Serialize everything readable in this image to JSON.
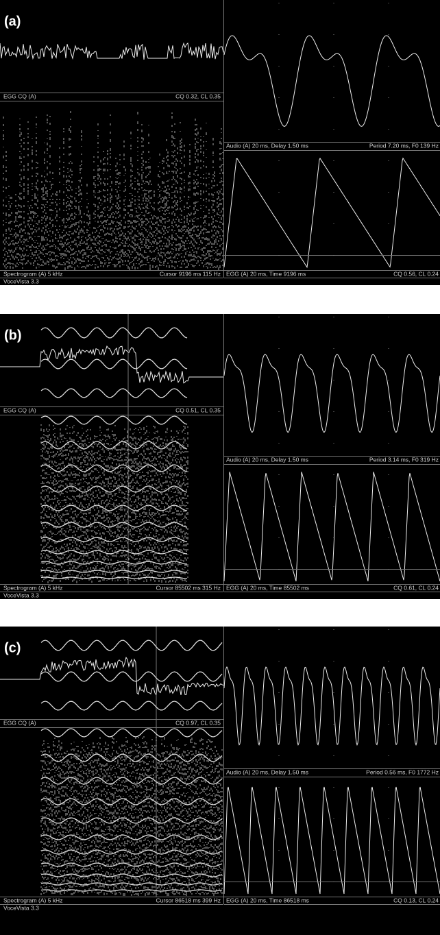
{
  "panels": [
    {
      "label": "(a)",
      "egg_cq": {
        "title": "EGG CQ (A)",
        "values": "CQ 0.32, CL 0.35"
      },
      "spectrogram": {
        "title": "Spectrogram (A)   5 kHz",
        "cursor": "Cursor  9196 ms   115  Hz"
      },
      "audio": {
        "title": "Audio (A) 20 ms, Delay 1.50 ms",
        "period": "Period 7.20 ms, F0 139 Hz"
      },
      "egg": {
        "title": "EGG (A) 20 ms, Time 9196 ms",
        "values": "CQ 0.56, CL 0.24"
      },
      "footer": "VoceVista 3.3"
    },
    {
      "label": "(b)",
      "egg_cq": {
        "title": "EGG CQ (A)",
        "values": "CQ 0.51, CL 0.35"
      },
      "spectrogram": {
        "title": "Spectrogram (A)   5 kHz",
        "cursor": "Cursor  85502 ms   315  Hz"
      },
      "audio": {
        "title": "Audio (A) 20 ms, Delay 1.50 ms",
        "period": "Period 3.14 ms, F0 319 Hz"
      },
      "egg": {
        "title": "EGG (A) 20 ms, Time 85502 ms",
        "values": "CQ 0.61, CL 0.24"
      },
      "footer": "VoceVista 3.3"
    },
    {
      "label": "(c)",
      "egg_cq": {
        "title": "EGG CQ (A)",
        "values": "CQ 0.97, CL 0.35"
      },
      "spectrogram": {
        "title": "Spectrogram (A)   5 kHz",
        "cursor": "Cursor  86518 ms   399  Hz"
      },
      "audio": {
        "title": "Audio (A) 20 ms, Delay 1.50 ms",
        "period": "Period 0.56 ms, F0 1772 Hz"
      },
      "egg": {
        "title": "EGG (A) 20 ms, Time 86518 ms",
        "values": "CQ 0.13, CL 0.24"
      },
      "footer": "VoceVista 3.3"
    }
  ]
}
